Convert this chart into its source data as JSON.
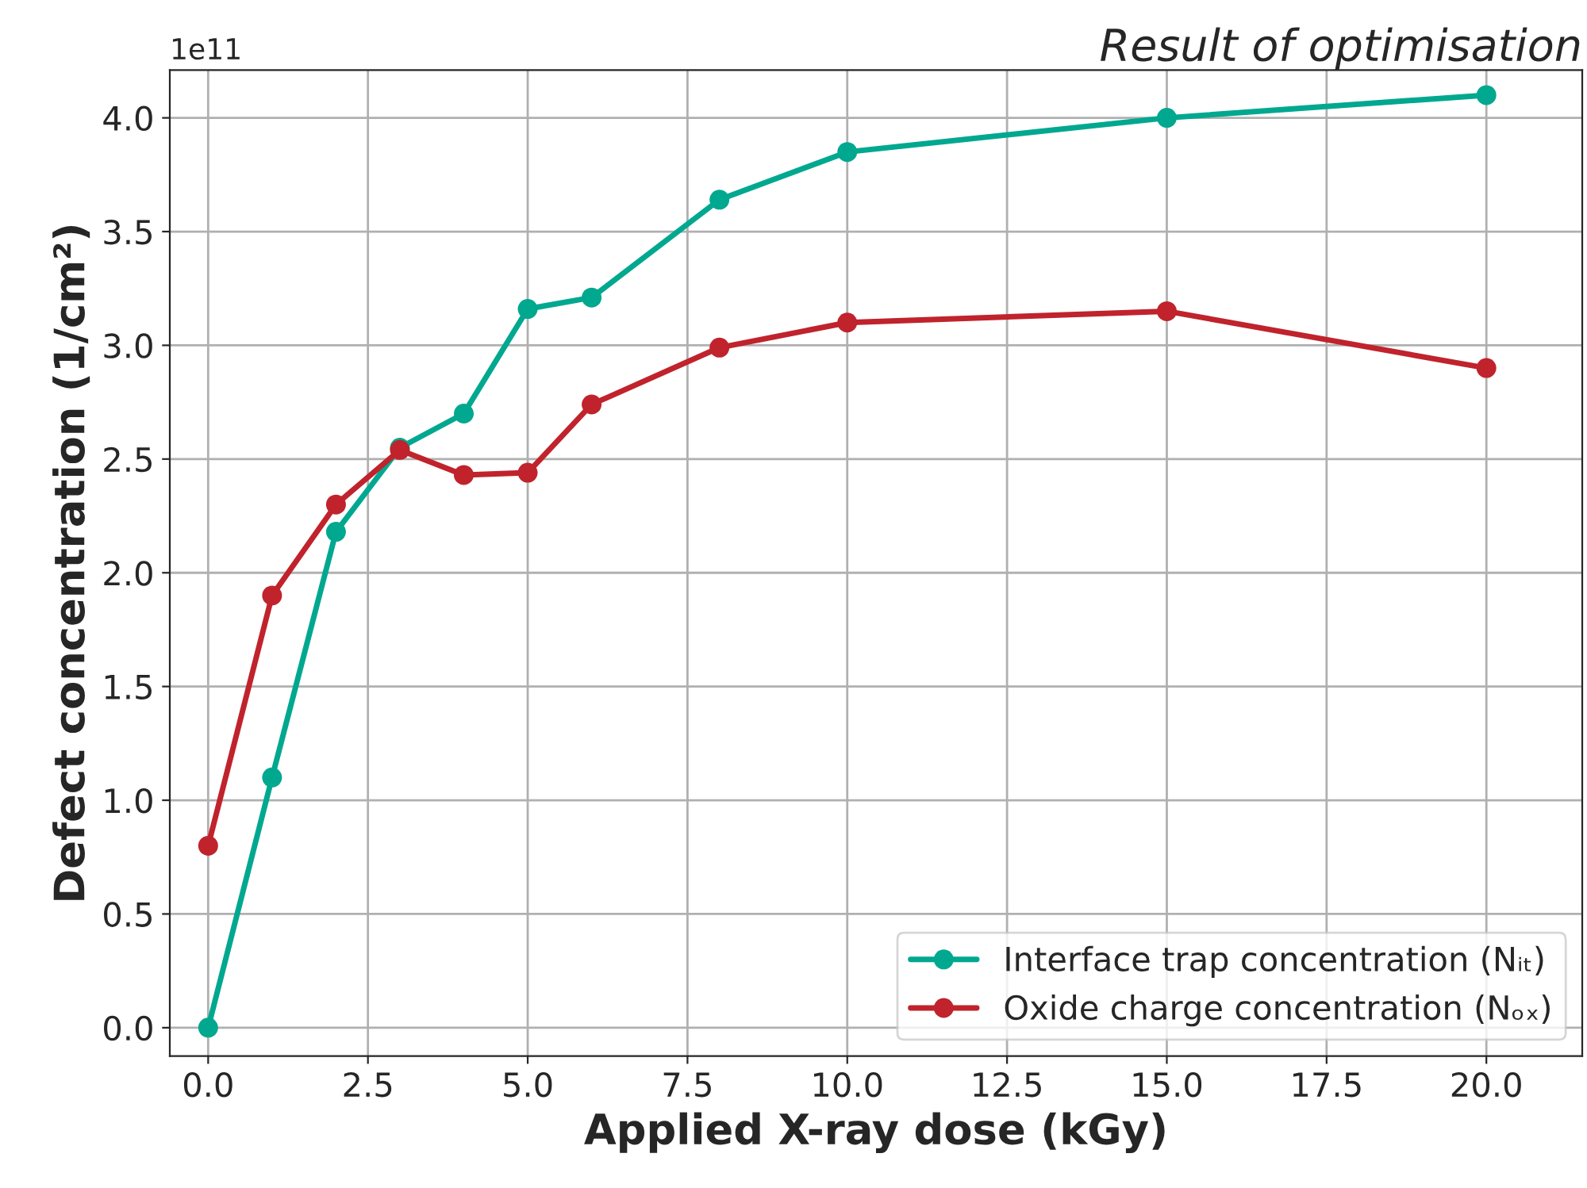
{
  "chart_data": {
    "type": "line",
    "title": "Result of optimisation",
    "xlabel": "Applied X-ray dose (kGy)",
    "ylabel": "Defect concentration (1/cm²)",
    "annotations": [
      "1e11"
    ],
    "x": [
      0,
      1,
      2,
      3,
      4,
      5,
      6,
      8,
      10,
      15,
      20
    ],
    "series": [
      {
        "name": "Interface trap concentration (Nᵢₜ)",
        "color": "#00a88f",
        "values": [
          0,
          1.1,
          2.18,
          2.55,
          2.7,
          3.16,
          3.21,
          3.64,
          3.85,
          4.0,
          4.1
        ]
      },
      {
        "name": "Oxide charge concentration (Nₒₓ)",
        "color": "#c0232c",
        "values": [
          0.8,
          1.9,
          2.3,
          2.54,
          2.43,
          2.44,
          2.74,
          2.99,
          3.1,
          3.15,
          2.9
        ]
      }
    ],
    "xlim": [
      -0.6,
      21.5
    ],
    "xticks": [
      {
        "value": 0,
        "label": "0.0"
      },
      2.5,
      {
        "value": 5,
        "label": "5.0"
      },
      7.5,
      {
        "value": 10,
        "label": "10.0"
      },
      12.5,
      {
        "value": 15,
        "label": "15.0"
      },
      17.5,
      {
        "value": 20,
        "label": "20.0"
      }
    ],
    "ylim": [
      -0.125,
      4.21
    ],
    "yticks": [
      {
        "value": 0,
        "label": "0.0"
      },
      0.5,
      {
        "value": 1,
        "label": "1.0"
      },
      1.5,
      {
        "value": 2,
        "label": "2.0"
      },
      2.5,
      {
        "value": 3,
        "label": "3.0"
      },
      3.5,
      {
        "value": 4,
        "label": "4.0"
      }
    ],
    "grid": true,
    "legend": "bottom right",
    "marker": "circle",
    "line_style": "solid"
  }
}
